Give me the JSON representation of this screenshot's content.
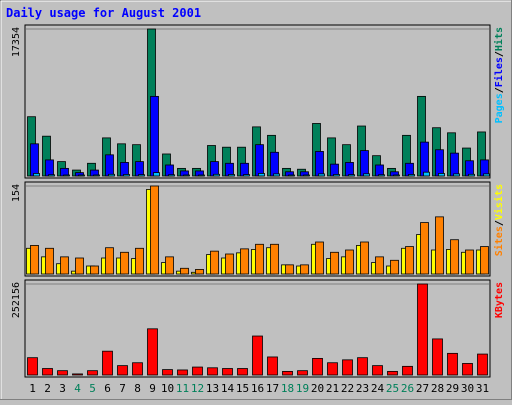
{
  "chart_data": {
    "type": "bar",
    "title": "Daily usage for August 2001",
    "categories": [
      "1",
      "2",
      "3",
      "4",
      "5",
      "6",
      "7",
      "8",
      "9",
      "10",
      "11",
      "12",
      "13",
      "14",
      "15",
      "16",
      "17",
      "18",
      "19",
      "20",
      "21",
      "22",
      "23",
      "24",
      "25",
      "26",
      "27",
      "28",
      "29",
      "30",
      "31"
    ],
    "weekend_days": [
      "4",
      "5",
      "11",
      "12",
      "18",
      "19",
      "25",
      "26"
    ],
    "colors": {
      "background": "#c0c0c0",
      "plot": "#c0c0c0",
      "title": "#0000ff",
      "hits": "#00805a",
      "files": "#0000ff",
      "pages": "#00bfff",
      "visits": "#ffff00",
      "sites": "#ff8000",
      "kbytes": "#ff0000",
      "weekend_label": "#00805a"
    },
    "panels": [
      {
        "id": "hits-files-pages",
        "ymax_label": "17354",
        "ymax": 17354,
        "legend_words": [
          "Pages",
          "Files",
          "Hits"
        ],
        "legend_separator": "/",
        "series": [
          {
            "name": "Hits",
            "values": [
              7000,
              4700,
              1700,
              700,
              1500,
              4500,
              3800,
              3700,
              17354,
              2600,
              900,
              900,
              3600,
              3400,
              3400,
              5800,
              4800,
              900,
              800,
              6200,
              4500,
              3700,
              5900,
              2400,
              900,
              4800,
              9400,
              5700,
              5100,
              3300,
              5200
            ]
          },
          {
            "name": "Files",
            "values": [
              3800,
              1900,
              900,
              400,
              700,
              2500,
              1600,
              1700,
              9400,
              1300,
              600,
              600,
              1700,
              1500,
              1500,
              3700,
              2800,
              500,
              500,
              2900,
              1400,
              1600,
              3000,
              1300,
              500,
              1500,
              4000,
              3100,
              2700,
              1800,
              1900
            ]
          },
          {
            "name": "Pages",
            "values": [
              300,
              150,
              100,
              80,
              120,
              200,
              180,
              160,
              400,
              150,
              100,
              100,
              200,
              180,
              170,
              300,
              250,
              100,
              100,
              250,
              180,
              160,
              260,
              150,
              100,
              180,
              450,
              300,
              250,
              200,
              250
            ]
          }
        ]
      },
      {
        "id": "visits-sites",
        "ymax_label": "154",
        "ymax": 154,
        "legend_words": [
          "Sites",
          "Visits"
        ],
        "legend_separator": "/",
        "series": [
          {
            "name": "Visits",
            "values": [
              45,
              30,
              18,
              5,
              14,
              28,
              28,
              27,
              148,
              20,
              5,
              3,
              34,
              28,
              37,
              43,
              46,
              16,
              14,
              52,
              27,
              30,
              50,
              20,
              14,
              45,
              69,
              42,
              43,
              38,
              42
            ]
          },
          {
            "name": "Sites",
            "values": [
              50,
              45,
              30,
              28,
              14,
              46,
              38,
              45,
              154,
              30,
              10,
              8,
              40,
              35,
              44,
              52,
              52,
              16,
              16,
              56,
              38,
              42,
              56,
              30,
              24,
              48,
              90,
              100,
              60,
              42,
              48
            ]
          }
        ]
      },
      {
        "id": "kbytes",
        "ymax_label": "252156",
        "ymax": 252156,
        "legend_words": [
          "KBytes"
        ],
        "legend_separator": "",
        "series": [
          {
            "name": "KBytes",
            "values": [
              48000,
              18000,
              12000,
              3000,
              12000,
              66000,
              26000,
              34000,
              128000,
              15000,
              14000,
              22000,
              20000,
              18000,
              18000,
              108000,
              50000,
              10000,
              12000,
              46000,
              34000,
              42000,
              48000,
              26000,
              10000,
              24000,
              252156,
              100000,
              60000,
              32000,
              58000
            ]
          }
        ]
      }
    ]
  }
}
